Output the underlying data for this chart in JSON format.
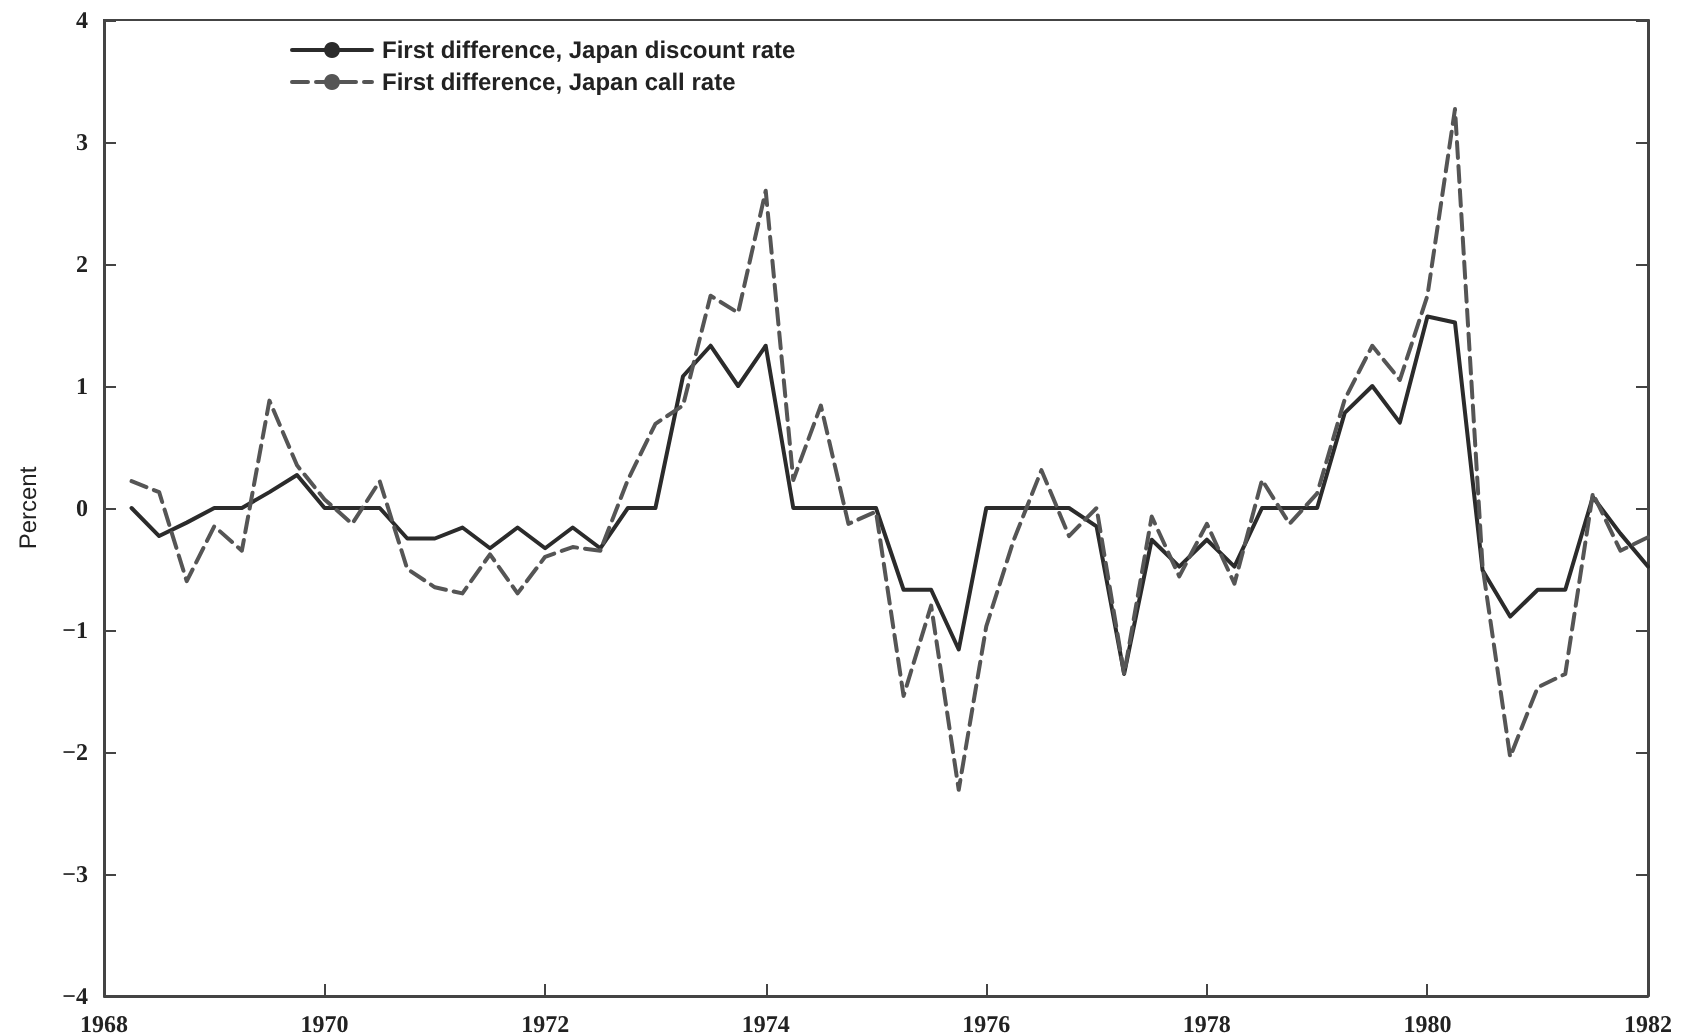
{
  "chart_data": {
    "type": "line",
    "ylabel": "Percent",
    "x": [
      1968.25,
      1968.5,
      1968.75,
      1969,
      1969.25,
      1969.5,
      1969.75,
      1970,
      1970.25,
      1970.5,
      1970.75,
      1971,
      1971.25,
      1971.5,
      1971.75,
      1972,
      1972.25,
      1972.5,
      1972.75,
      1973,
      1973.25,
      1973.5,
      1973.75,
      1974,
      1974.25,
      1974.5,
      1974.75,
      1975,
      1975.25,
      1975.5,
      1975.75,
      1976,
      1976.25,
      1976.5,
      1976.75,
      1977,
      1977.25,
      1977.5,
      1977.75,
      1978,
      1978.25,
      1978.5,
      1978.75,
      1979,
      1979.25,
      1979.5,
      1979.75,
      1980,
      1980.25,
      1980.5,
      1980.75,
      1981,
      1981.25,
      1981.5,
      1981.75,
      1982
    ],
    "series": [
      {
        "name": "First difference, Japan discount rate",
        "color": "#2b2b2b",
        "line_style": "solid",
        "values": [
          0,
          -0.23,
          -0.12,
          0,
          0,
          0.13,
          0.27,
          0,
          0,
          0,
          -0.25,
          -0.25,
          -0.16,
          -0.33,
          -0.16,
          -0.33,
          -0.16,
          -0.33,
          0,
          0,
          1.08,
          1.33,
          1.0,
          1.33,
          0,
          0,
          0,
          0,
          -0.67,
          -0.67,
          -1.16,
          0,
          0,
          0,
          0,
          -0.15,
          -1.36,
          -0.26,
          -0.48,
          -0.26,
          -0.48,
          0,
          0,
          0,
          0.78,
          1.0,
          0.7,
          1.57,
          1.52,
          -0.51,
          -0.89,
          -0.67,
          -0.67,
          0.09,
          -0.21,
          -0.48
        ]
      },
      {
        "name": "First difference, Japan call rate",
        "color": "#555555",
        "line_style": "dashed",
        "values": [
          0.22,
          0.13,
          -0.6,
          -0.15,
          -0.35,
          0.88,
          0.35,
          0.07,
          -0.13,
          0.22,
          -0.5,
          -0.65,
          -0.7,
          -0.38,
          -0.7,
          -0.4,
          -0.32,
          -0.35,
          0.23,
          0.69,
          0.84,
          1.74,
          1.6,
          2.6,
          0.23,
          0.84,
          -0.13,
          -0.03,
          -1.54,
          -0.8,
          -2.31,
          -0.97,
          -0.26,
          0.31,
          -0.23,
          0,
          -1.36,
          -0.07,
          -0.56,
          -0.13,
          -0.62,
          0.23,
          -0.13,
          0.12,
          0.89,
          1.33,
          1.05,
          1.74,
          3.27,
          -0.48,
          -2.04,
          -1.47,
          -1.36,
          0.12,
          -0.35,
          -0.24
        ]
      }
    ],
    "xlim": [
      1968,
      1982
    ],
    "xticks": [
      1968,
      1970,
      1972,
      1974,
      1976,
      1978,
      1980,
      1982
    ],
    "ylim": [
      -4,
      4
    ],
    "yticks": [
      -4,
      -3,
      -2,
      -1,
      0,
      1,
      2,
      3,
      4
    ],
    "grid": false,
    "legend": "top left",
    "marker": "none"
  }
}
